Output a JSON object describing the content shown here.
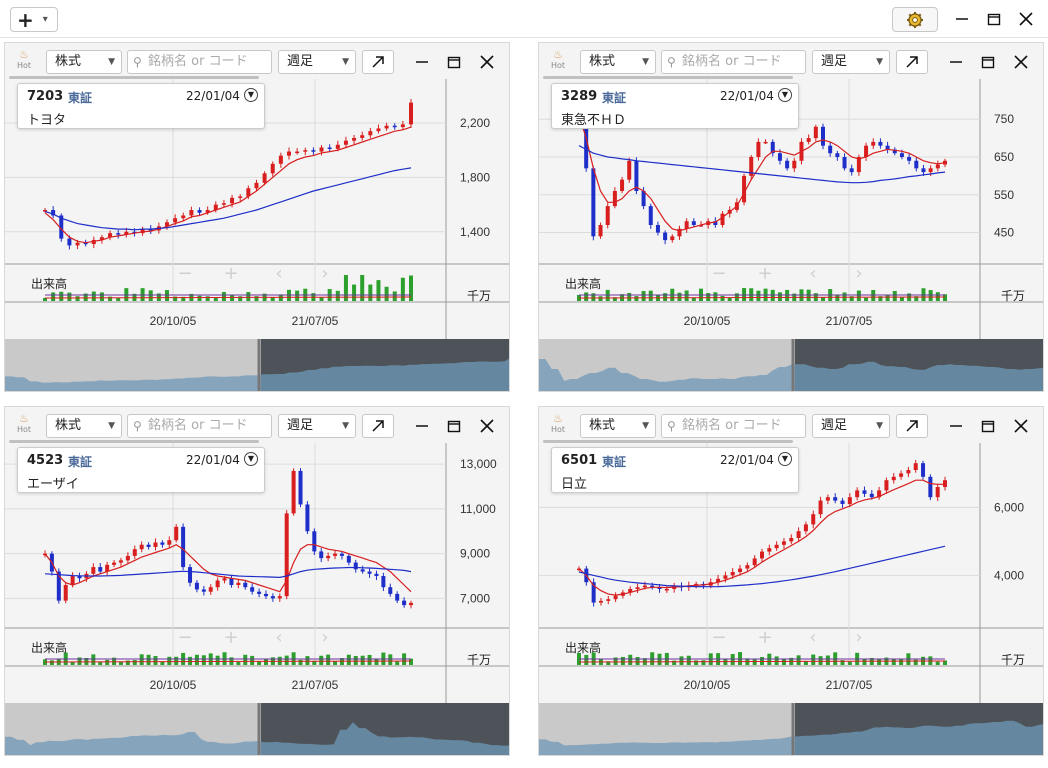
{
  "app": {
    "add_button_plus": "+",
    "add_button_caret": "▾",
    "window_controls": [
      "minimize-icon",
      "maximize-icon",
      "close-icon"
    ]
  },
  "panel_common": {
    "hot_label": "Hot",
    "type_select": "株式",
    "search_placeholder": "銘柄名 or コード",
    "period_select": "週足",
    "volume_label": "出来高",
    "volume_unit": "千万"
  },
  "panels": [
    {
      "code": "7203",
      "market": "東証",
      "date": "22/01/04",
      "name": "トヨタ",
      "y_ticks": [
        "2,200",
        "1,800",
        "1,400"
      ],
      "x_ticks": [
        "20/10/05",
        "21/07/05"
      ]
    },
    {
      "code": "3289",
      "market": "東証",
      "date": "22/01/04",
      "name": "東急不ＨＤ",
      "y_ticks": [
        "750",
        "650",
        "550",
        "450"
      ],
      "x_ticks": [
        "20/10/05",
        "21/07/05"
      ]
    },
    {
      "code": "4523",
      "market": "東証",
      "date": "22/01/04",
      "name": "エーザイ",
      "y_ticks": [
        "13,000",
        "11,000",
        "9,000",
        "7,000"
      ],
      "x_ticks": [
        "20/10/05",
        "21/07/05"
      ]
    },
    {
      "code": "6501",
      "market": "東証",
      "date": "22/01/04",
      "name": "日立",
      "y_ticks": [
        "6,000",
        "4,000"
      ],
      "x_ticks": [
        "20/10/05",
        "21/07/05"
      ]
    }
  ],
  "chart_data": [
    {
      "type": "line",
      "ticker": "7203",
      "series": [
        {
          "values": [
            1560,
            1520,
            1350,
            1300,
            1320,
            1310,
            1340,
            1360,
            1390,
            1380,
            1400,
            1390,
            1420,
            1410,
            1440,
            1470,
            1500,
            1520,
            1560,
            1540,
            1560,
            1600,
            1610,
            1650,
            1660,
            1720,
            1760,
            1830,
            1900,
            1960,
            1990,
            1990,
            2000,
            1990,
            2020,
            2010,
            2040,
            2070,
            2090,
            2110,
            2140,
            2160,
            2180,
            2170,
            2190,
            2350
          ]
        },
        {
          "values": [
            1540,
            1490,
            1420,
            1360,
            1330,
            1320,
            1330,
            1340,
            1360,
            1370,
            1380,
            1390,
            1400,
            1405,
            1420,
            1440,
            1460,
            1480,
            1510,
            1520,
            1540,
            1560,
            1580,
            1600,
            1620,
            1660,
            1700,
            1750,
            1800,
            1850,
            1900,
            1930,
            1950,
            1960,
            1980,
            1990,
            2000,
            2020,
            2040,
            2060,
            2080,
            2100,
            2120,
            2140,
            2150,
            2170
          ]
        },
        {
          "values": [
            1550,
            1530,
            1500,
            1480,
            1460,
            1450,
            1440,
            1430,
            1425,
            1420,
            1420,
            1415,
            1420,
            1420,
            1425,
            1430,
            1440,
            1450,
            1460,
            1470,
            1480,
            1490,
            1500,
            1515,
            1530,
            1545,
            1560,
            1580,
            1600,
            1620,
            1640,
            1660,
            1680,
            1700,
            1715,
            1730,
            1745,
            1760,
            1775,
            1790,
            1805,
            1820,
            1835,
            1850,
            1860,
            1870
          ]
        }
      ]
    },
    {
      "type": "line",
      "ticker": "3289",
      "series": [
        {
          "values": [
            770,
            620,
            440,
            470,
            520,
            560,
            590,
            640,
            560,
            520,
            470,
            450,
            430,
            440,
            460,
            480,
            470,
            470,
            480,
            470,
            500,
            510,
            530,
            600,
            650,
            690,
            690,
            660,
            640,
            620,
            640,
            690,
            700,
            730,
            680,
            660,
            650,
            620,
            610,
            650,
            680,
            690,
            680,
            670,
            660,
            650,
            640,
            620,
            610,
            620,
            630,
            640
          ]
        },
        {
          "values": [
            760,
            700,
            620,
            560,
            530,
            530,
            540,
            560,
            570,
            560,
            540,
            510,
            480,
            460,
            455,
            460,
            465,
            470,
            475,
            478,
            490,
            505,
            520,
            555,
            590,
            620,
            650,
            665,
            665,
            660,
            655,
            665,
            675,
            690,
            695,
            690,
            680,
            665,
            650,
            645,
            650,
            660,
            665,
            670,
            668,
            665,
            660,
            650,
            640,
            635,
            632,
            635
          ]
        },
        {
          "values": [
            680,
            670,
            660,
            655,
            650,
            648,
            645,
            643,
            640,
            638,
            636,
            634,
            632,
            630,
            628,
            626,
            624,
            622,
            620,
            618,
            616,
            614,
            612,
            610,
            608,
            606,
            604,
            602,
            600,
            598,
            596,
            594,
            592,
            590,
            588,
            586,
            584,
            583,
            582,
            582,
            583,
            585,
            588,
            590,
            592,
            595,
            598,
            600,
            603,
            605,
            608,
            610
          ]
        }
      ]
    },
    {
      "type": "line",
      "ticker": "4523",
      "series": [
        {
          "values": [
            9000,
            8200,
            6900,
            7600,
            8000,
            7900,
            8100,
            8400,
            8200,
            8500,
            8600,
            8700,
            8900,
            9200,
            9400,
            9300,
            9500,
            9400,
            9600,
            10200,
            8400,
            7700,
            7400,
            7300,
            7500,
            7800,
            7900,
            7600,
            7700,
            7500,
            7300,
            7200,
            7100,
            7000,
            7100,
            10800,
            12700,
            11200,
            10000,
            9100,
            8800,
            8900,
            9000,
            8900,
            8600,
            8300,
            8200,
            8100,
            8000,
            7500,
            7200,
            6900,
            6700,
            6800
          ]
        },
        {
          "values": [
            9000,
            8600,
            8000,
            7700,
            7600,
            7700,
            7850,
            8000,
            8100,
            8200,
            8300,
            8400,
            8550,
            8700,
            8850,
            8950,
            9050,
            9150,
            9250,
            9400,
            9200,
            8900,
            8600,
            8300,
            8100,
            8000,
            7950,
            7900,
            7850,
            7800,
            7700,
            7600,
            7500,
            7400,
            7300,
            7800,
            8600,
            9200,
            9400,
            9400,
            9300,
            9200,
            9150,
            9100,
            9000,
            8900,
            8800,
            8700,
            8600,
            8400,
            8200,
            7900,
            7600,
            7300
          ]
        },
        {
          "values": [
            8100,
            8080,
            8060,
            8040,
            8020,
            8010,
            8000,
            8000,
            8000,
            8010,
            8020,
            8030,
            8050,
            8070,
            8090,
            8110,
            8130,
            8150,
            8170,
            8200,
            8210,
            8200,
            8180,
            8150,
            8120,
            8090,
            8060,
            8030,
            8000,
            7990,
            7980,
            7970,
            7960,
            7950,
            7940,
            8000,
            8100,
            8200,
            8260,
            8300,
            8320,
            8340,
            8360,
            8370,
            8380,
            8380,
            8370,
            8360,
            8340,
            8320,
            8300,
            8280,
            8250,
            8200
          ]
        }
      ]
    },
    {
      "type": "line",
      "ticker": "6501",
      "series": [
        {
          "values": [
            4200,
            3800,
            3200,
            3250,
            3300,
            3400,
            3500,
            3600,
            3650,
            3700,
            3650,
            3600,
            3600,
            3700,
            3650,
            3700,
            3750,
            3700,
            3800,
            3900,
            4000,
            4100,
            4200,
            4300,
            4500,
            4700,
            4800,
            4900,
            5000,
            5100,
            5300,
            5500,
            5800,
            6200,
            6300,
            6200,
            6100,
            6300,
            6500,
            6400,
            6300,
            6500,
            6800,
            6900,
            7000,
            7100,
            7300,
            6900,
            6300,
            6600,
            6800
          ]
        },
        {
          "values": [
            4200,
            4000,
            3700,
            3550,
            3450,
            3420,
            3450,
            3500,
            3560,
            3620,
            3650,
            3650,
            3640,
            3660,
            3670,
            3690,
            3710,
            3720,
            3750,
            3800,
            3860,
            3940,
            4020,
            4110,
            4240,
            4390,
            4520,
            4640,
            4760,
            4880,
            5000,
            5140,
            5320,
            5550,
            5750,
            5880,
            5960,
            6040,
            6150,
            6220,
            6260,
            6320,
            6420,
            6520,
            6610,
            6700,
            6800,
            6800,
            6700,
            6680,
            6680
          ]
        },
        {
          "values": [
            4100,
            4050,
            4000,
            3950,
            3900,
            3860,
            3830,
            3800,
            3780,
            3760,
            3740,
            3720,
            3700,
            3690,
            3680,
            3675,
            3670,
            3668,
            3668,
            3670,
            3680,
            3690,
            3705,
            3720,
            3740,
            3760,
            3785,
            3810,
            3840,
            3870,
            3905,
            3940,
            3980,
            4020,
            4065,
            4110,
            4160,
            4210,
            4260,
            4310,
            4360,
            4410,
            4460,
            4510,
            4560,
            4610,
            4660,
            4710,
            4760,
            4810,
            4860
          ]
        }
      ]
    }
  ]
}
